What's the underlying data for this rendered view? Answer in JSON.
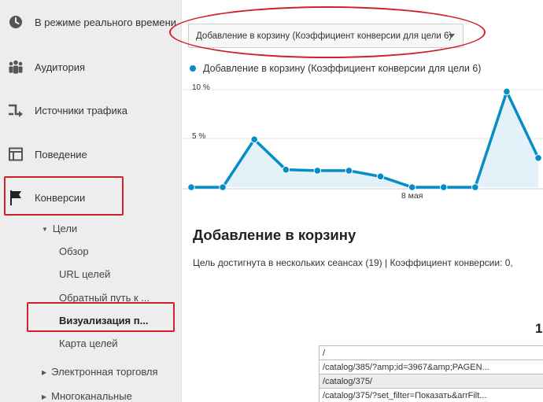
{
  "colors": {
    "accent": "#058dc7",
    "highlight": "#d0202a",
    "fill": "#e3f1f8"
  },
  "sidebar": {
    "items": [
      {
        "label": "В режиме реального времени",
        "icon": "clock-icon"
      },
      {
        "label": "Аудитория",
        "icon": "people-icon"
      },
      {
        "label": "Источники трафика",
        "icon": "arrows-icon"
      },
      {
        "label": "Поведение",
        "icon": "layout-icon"
      },
      {
        "label": "Конверсии",
        "icon": "flag-icon"
      }
    ],
    "goals_group": "Цели",
    "goals_items": [
      "Обзор",
      "URL целей",
      "Обратный путь к ...",
      "Визуализация п...",
      "Карта целей"
    ],
    "ecommerce": "Электронная торговля",
    "multichannel": "Многоканальные"
  },
  "main": {
    "metric_select": "Добавление в корзину (Коэффициент конверсии для цели 6)",
    "legend": "Добавление в корзину (Коэффициент конверсии для цели 6)",
    "section_title": "Добавление в корзину",
    "summary": "Цель достигнута в нескольких сеансах (19) | Коэффициент конверсии: 0,",
    "big_number": "1",
    "url_rows": [
      "/",
      "/catalog/385/?amp;id=3967&amp;PAGEN...",
      "/catalog/375/",
      "/catalog/375/?set_filter=Показать&arrFilt..."
    ]
  },
  "chart_data": {
    "type": "area",
    "series": [
      {
        "values": [
          0,
          0,
          4.9,
          1.8,
          1.7,
          1.7,
          1.1,
          0,
          0,
          0,
          9.8,
          3
        ]
      }
    ],
    "y_tick_labels": [
      "10 %",
      "5 %"
    ],
    "x_tick_labels": [
      "8 мая"
    ],
    "ylim": [
      0,
      10
    ]
  }
}
